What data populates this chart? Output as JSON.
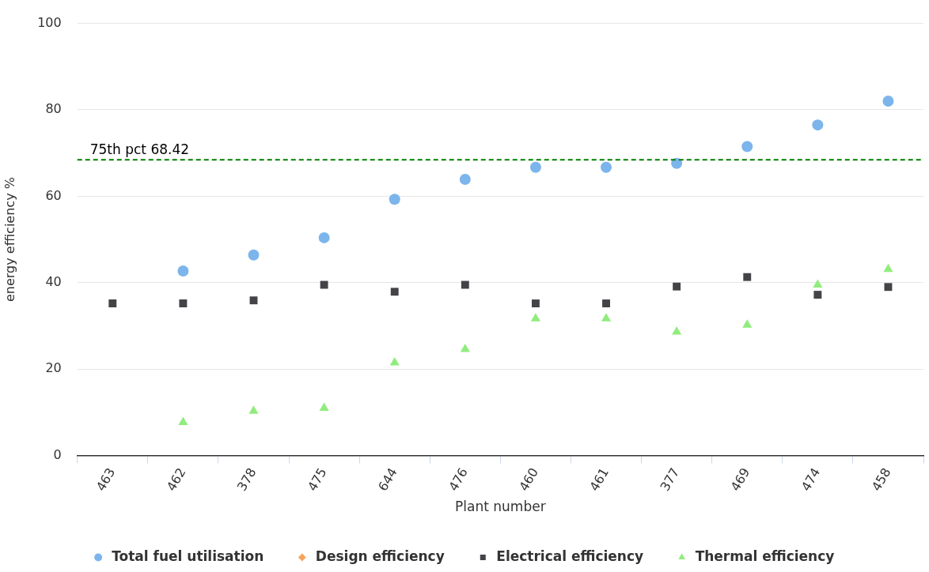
{
  "chart_data": {
    "type": "scatter",
    "xlabel": "Plant number",
    "ylabel": "energy efficiency %",
    "categories": [
      "463",
      "462",
      "378",
      "475",
      "644",
      "476",
      "460",
      "461",
      "377",
      "469",
      "474",
      "458"
    ],
    "series": [
      {
        "name": "Total fuel utilisation",
        "color": "#7cb5ec",
        "marker": "circle",
        "values": [
          null,
          42.7,
          46.4,
          50.4,
          59.3,
          63.9,
          66.7,
          66.7,
          67.6,
          71.5,
          76.5,
          82.0
        ]
      },
      {
        "name": "Design efficiency",
        "color": "#f7a35c",
        "marker": "diamond",
        "values": [
          null,
          null,
          null,
          null,
          null,
          null,
          null,
          null,
          null,
          null,
          null,
          null
        ]
      },
      {
        "name": "Electrical efficiency",
        "color": "#434348",
        "marker": "square",
        "values": [
          35.2,
          35.2,
          35.9,
          39.5,
          37.9,
          39.5,
          35.2,
          35.2,
          39.1,
          41.3,
          37.2,
          39.0
        ]
      },
      {
        "name": "Thermal efficiency",
        "color": "#90ed7d",
        "marker": "triangle",
        "values": [
          null,
          7.7,
          10.3,
          11.0,
          21.5,
          24.6,
          31.7,
          31.7,
          28.6,
          30.2,
          39.5,
          43.1
        ]
      }
    ],
    "ylim": [
      0,
      100
    ],
    "yticks": [
      0,
      20,
      40,
      60,
      80,
      100
    ],
    "grid": "y",
    "legend": "bottom",
    "ref_lines": [
      {
        "axis": "y",
        "value": 68.42,
        "label": "75th pct 68.42",
        "color": "#008000",
        "line_style": "dashed"
      }
    ]
  }
}
